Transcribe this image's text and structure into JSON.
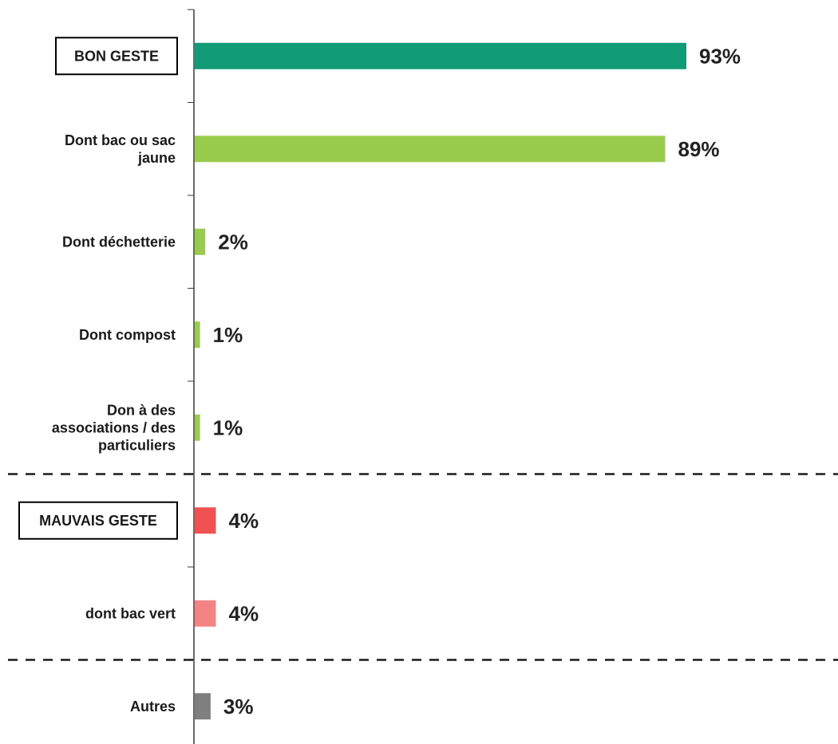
{
  "chart_data": {
    "type": "bar",
    "orientation": "horizontal",
    "categories": [
      "BON GESTE",
      "Dont bac ou sac jaune",
      "Dont déchetterie",
      "Dont compost",
      "Don à des associations / des particuliers",
      "MAUVAIS GESTE",
      "dont bac vert",
      "Autres"
    ],
    "category_lines": [
      [
        "BON GESTE"
      ],
      [
        "Dont bac ou sac",
        "jaune"
      ],
      [
        "Dont déchetterie"
      ],
      [
        "Dont compost"
      ],
      [
        "Don à des",
        "associations / des",
        "particuliers"
      ],
      [
        "MAUVAIS GESTE"
      ],
      [
        "dont bac vert"
      ],
      [
        "Autres"
      ]
    ],
    "values": [
      93,
      89,
      2,
      1,
      1,
      4,
      4,
      3
    ],
    "value_labels": [
      "93%",
      "89%",
      "2%",
      "1%",
      "1%",
      "4%",
      "4%",
      "3%"
    ],
    "colors": [
      "#119b77",
      "#99cc4c",
      "#99cc4c",
      "#99cc4c",
      "#99cc4c",
      "#ef5250",
      "#f48484",
      "#7f7f7f"
    ],
    "boxed": [
      true,
      false,
      false,
      false,
      false,
      true,
      false,
      false
    ],
    "dashed_separators_after": [
      4,
      6
    ],
    "xlim": [
      0,
      100
    ],
    "title": "",
    "xlabel": "",
    "ylabel": ""
  }
}
